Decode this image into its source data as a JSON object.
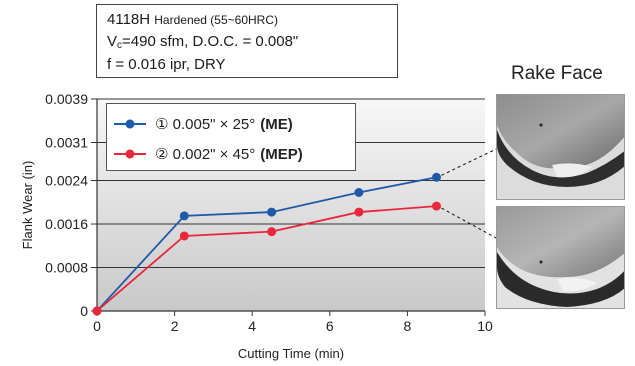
{
  "info": {
    "line1_main": "4118H",
    "line1_small": "Hardened (55~60HRC)",
    "line2_v": "V",
    "line2_sub": "c",
    "line2_rest": "=490 sfm, D.O.C. = 0.008\"",
    "line3": "f = 0.016 ipr, DRY"
  },
  "photos": {
    "title": "Rake Face"
  },
  "colors": {
    "me": "#1f5aa8",
    "mep": "#e8283a",
    "grid": "#333333"
  },
  "chart_data": {
    "type": "line",
    "xlabel": "Cutting Time (min)",
    "ylabel": "Flank Wear (in)",
    "xlim": [
      0,
      10
    ],
    "ylim": [
      0,
      0.0039
    ],
    "xticks": [
      0,
      2,
      4,
      6,
      8,
      10
    ],
    "xtick_labels": [
      "0",
      "2",
      "4",
      "6",
      "8",
      "10"
    ],
    "yticks": [
      0,
      0.0008,
      0.0016,
      0.0024,
      0.0031,
      0.0039
    ],
    "ytick_labels": [
      "0",
      "0.0008",
      "0.0016",
      "0.0024",
      "0.0031",
      "0.0039"
    ],
    "grid": true,
    "legend_position": "top-left",
    "series": [
      {
        "name": "0.005\" × 25°",
        "marker_label": "①",
        "bold_label": "(ME)",
        "color": "#1f5aa8",
        "x": [
          0,
          2.25,
          4.5,
          6.75,
          8.75
        ],
        "y": [
          0,
          0.00175,
          0.00182,
          0.00218,
          0.00246
        ]
      },
      {
        "name": "0.002\" × 45°",
        "marker_label": "②",
        "bold_label": "(MEP)",
        "color": "#e8283a",
        "x": [
          0,
          2.25,
          4.5,
          6.75,
          8.75
        ],
        "y": [
          0,
          0.00138,
          0.00146,
          0.00182,
          0.00193
        ]
      }
    ]
  }
}
